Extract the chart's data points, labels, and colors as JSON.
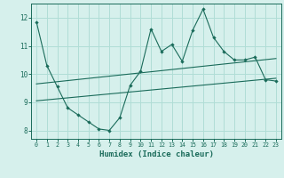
{
  "title": "",
  "xlabel": "Humidex (Indice chaleur)",
  "ylabel": "",
  "bg_color": "#d6f0ec",
  "grid_color": "#b0ddd6",
  "line_color": "#1a6b5a",
  "ylim": [
    7.7,
    12.5
  ],
  "xlim": [
    -0.5,
    23.5
  ],
  "line1_x": [
    0,
    1,
    2,
    3,
    4,
    5,
    6,
    7,
    8,
    9,
    10,
    11,
    12,
    13,
    14,
    15,
    16,
    17,
    18,
    19,
    20,
    21,
    22,
    23
  ],
  "line1_y": [
    11.85,
    10.3,
    9.55,
    8.8,
    8.55,
    8.3,
    8.05,
    8.0,
    8.45,
    9.6,
    10.1,
    11.6,
    10.8,
    11.05,
    10.45,
    11.55,
    12.3,
    11.3,
    10.8,
    10.5,
    10.5,
    10.6,
    9.8,
    9.75
  ],
  "line2_x": [
    0,
    23
  ],
  "line2_y": [
    9.65,
    10.55
  ],
  "line3_x": [
    0,
    23
  ],
  "line3_y": [
    9.05,
    9.85
  ],
  "yticks": [
    8,
    9,
    10,
    11,
    12
  ],
  "xticks": [
    0,
    1,
    2,
    3,
    4,
    5,
    6,
    7,
    8,
    9,
    10,
    11,
    12,
    13,
    14,
    15,
    16,
    17,
    18,
    19,
    20,
    21,
    22,
    23
  ]
}
